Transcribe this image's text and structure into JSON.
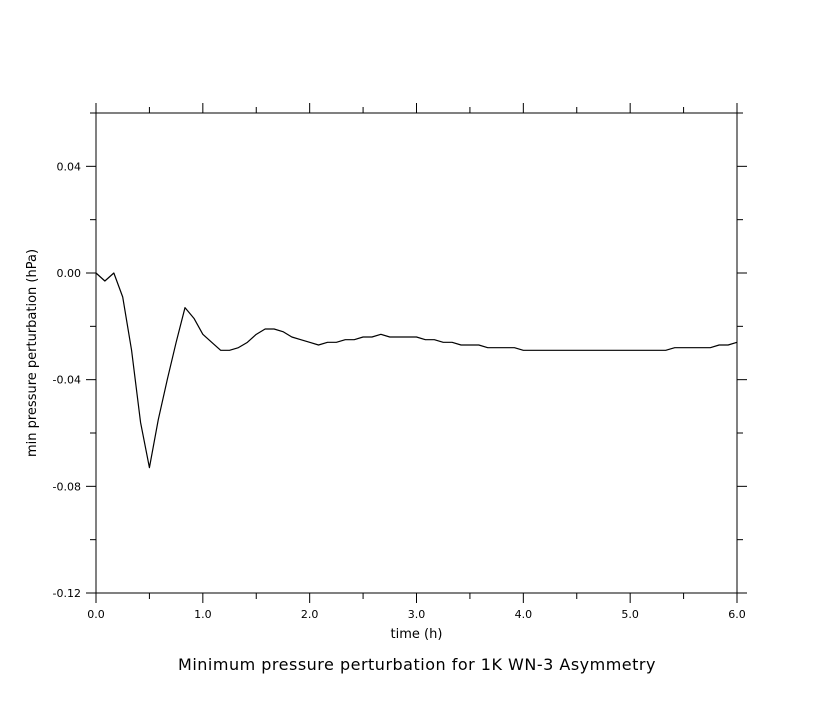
{
  "chart_data": {
    "type": "line",
    "title": "Minimum pressure perturbation for 1K WN-3 Asymmetry",
    "xlabel": "time (h)",
    "ylabel": "min pressure perturbation (hPa)",
    "xlim": [
      0.0,
      6.0
    ],
    "ylim": [
      -0.12,
      0.06
    ],
    "x_ticks": [
      0.0,
      1.0,
      2.0,
      3.0,
      4.0,
      5.0,
      6.0
    ],
    "x_tick_labels": [
      "0.0",
      "1.0",
      "2.0",
      "3.0",
      "4.0",
      "5.0",
      "6.0"
    ],
    "x_minor_step": 0.5,
    "y_ticks": [
      -0.12,
      -0.08,
      -0.04,
      0.0,
      0.04
    ],
    "y_tick_labels": [
      "-0.12",
      "-0.08",
      "-0.04",
      "0.00",
      "0.04"
    ],
    "y_minor_step": 0.02,
    "grid": false,
    "line_color": "#000000",
    "series": [
      {
        "x": [
          0.0,
          0.083,
          0.167,
          0.25,
          0.333,
          0.417,
          0.5,
          0.583,
          0.667,
          0.75,
          0.833,
          0.917,
          1.0,
          1.083,
          1.167,
          1.25,
          1.333,
          1.417,
          1.5,
          1.583,
          1.667,
          1.75,
          1.833,
          1.917,
          2.0,
          2.083,
          2.167,
          2.25,
          2.333,
          2.417,
          2.5,
          2.583,
          2.667,
          2.75,
          2.833,
          2.917,
          3.0,
          3.083,
          3.167,
          3.25,
          3.333,
          3.417,
          3.5,
          3.583,
          3.667,
          3.75,
          3.833,
          3.917,
          4.0,
          4.083,
          4.167,
          4.25,
          4.333,
          4.417,
          4.5,
          4.583,
          4.667,
          4.75,
          4.833,
          4.917,
          5.0,
          5.083,
          5.167,
          5.25,
          5.333,
          5.417,
          5.5,
          5.583,
          5.667,
          5.75,
          5.833,
          5.917,
          6.0
        ],
        "y": [
          0.0,
          -0.003,
          0.0,
          -0.009,
          -0.029,
          -0.056,
          -0.073,
          -0.055,
          -0.04,
          -0.026,
          -0.013,
          -0.017,
          -0.023,
          -0.026,
          -0.029,
          -0.029,
          -0.028,
          -0.026,
          -0.023,
          -0.021,
          -0.021,
          -0.022,
          -0.024,
          -0.025,
          -0.026,
          -0.027,
          -0.026,
          -0.026,
          -0.025,
          -0.025,
          -0.024,
          -0.024,
          -0.023,
          -0.024,
          -0.024,
          -0.024,
          -0.024,
          -0.025,
          -0.025,
          -0.026,
          -0.026,
          -0.027,
          -0.027,
          -0.027,
          -0.028,
          -0.028,
          -0.028,
          -0.028,
          -0.029,
          -0.029,
          -0.029,
          -0.029,
          -0.029,
          -0.029,
          -0.029,
          -0.029,
          -0.029,
          -0.029,
          -0.029,
          -0.029,
          -0.029,
          -0.029,
          -0.029,
          -0.029,
          -0.029,
          -0.028,
          -0.028,
          -0.028,
          -0.028,
          -0.028,
          -0.027,
          -0.027,
          -0.026
        ]
      }
    ]
  }
}
